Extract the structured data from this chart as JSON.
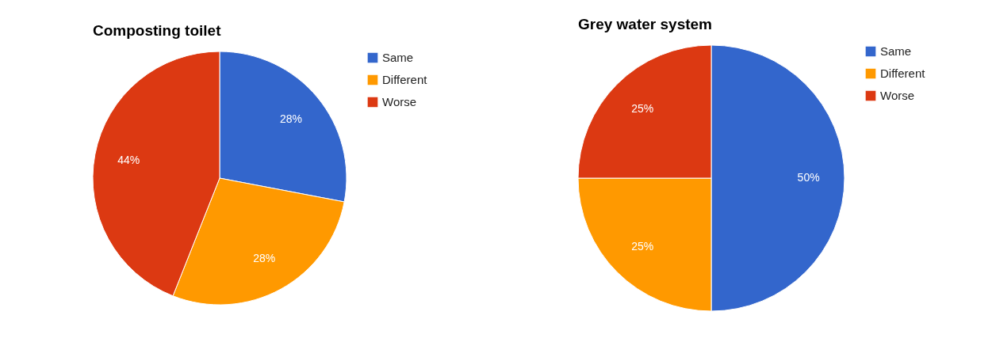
{
  "chart_data": [
    {
      "type": "pie",
      "title": "Composting toilet",
      "categories": [
        "Same",
        "Different",
        "Worse"
      ],
      "values": [
        28,
        28,
        44
      ],
      "colors": [
        "#3366cc",
        "#ff9900",
        "#dc3912"
      ],
      "value_labels": [
        "28%",
        "28%",
        "44%"
      ],
      "legend": "top right"
    },
    {
      "type": "pie",
      "title": "Grey water system",
      "categories": [
        "Same",
        "Different",
        "Worse"
      ],
      "values": [
        50,
        25,
        25
      ],
      "colors": [
        "#3366cc",
        "#ff9900",
        "#dc3912"
      ],
      "value_labels": [
        "50%",
        "25%",
        "25%"
      ],
      "legend": "top right"
    }
  ]
}
